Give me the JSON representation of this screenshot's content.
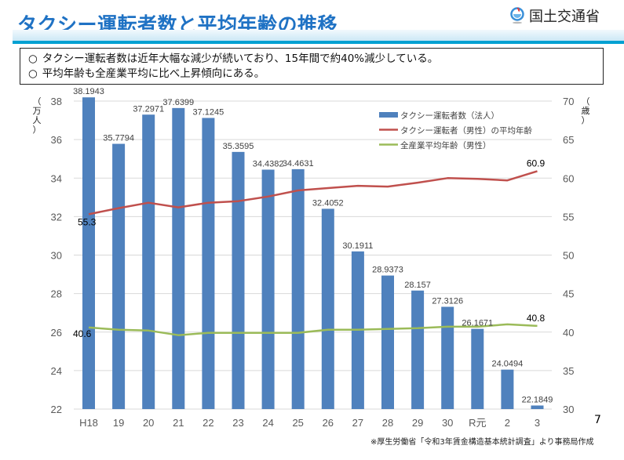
{
  "header": {
    "title": "タクシー運転者数と平均年齢の推移",
    "logo_text": "国土交通省",
    "logo_icon": "mlit-logo-icon"
  },
  "summary": {
    "bullet": "○",
    "lines": [
      "タクシー運転者数は近年大幅な減少が続いており、15年間で約40%減少している。",
      "平均年齢も全産業平均に比べ上昇傾向にある。"
    ]
  },
  "page_number": "7",
  "source_note": "※厚生労働省「令和3年賃金構造基本統計調査」より事務局作成",
  "colors": {
    "bar": "#4f81bd",
    "taxi_age_line": "#c0504d",
    "all_industry_line": "#9bbb59",
    "grid": "#d9d9d9",
    "title": "#1f72c4",
    "header_rule": "#00a0d2"
  },
  "chart_data": {
    "type": "bar",
    "title": "",
    "categories": [
      "H18",
      "19",
      "20",
      "21",
      "22",
      "23",
      "24",
      "25",
      "26",
      "27",
      "28",
      "29",
      "30",
      "R元",
      "2",
      "3"
    ],
    "left_axis": {
      "label": "（万人）",
      "range": [
        22,
        38
      ],
      "ticks": [
        "22",
        "24",
        "26",
        "28",
        "30",
        "32",
        "34",
        "36",
        "38"
      ]
    },
    "right_axis": {
      "label": "（歳）",
      "range": [
        30,
        70
      ],
      "ticks": [
        "30",
        "35",
        "40",
        "45",
        "50",
        "55",
        "60",
        "65",
        "70"
      ]
    },
    "grid": true,
    "legend_position": "top-right",
    "series": [
      {
        "name": "タクシー運転者数（法人）",
        "type": "bar",
        "axis": "left",
        "values": [
          38.1943,
          35.7794,
          37.2971,
          37.6399,
          37.1245,
          35.3595,
          34.4382,
          34.4631,
          32.4052,
          30.1911,
          28.9373,
          28.157,
          27.3126,
          26.1671,
          24.0494,
          22.1849
        ],
        "labels": [
          "38.1943",
          "35.7794",
          "37.2971",
          "37.6399",
          "37.1245",
          "35.3595",
          "34.4382",
          "34.4631",
          "32.4052",
          "30.1911",
          "28.9373",
          "28.157",
          "27.3126",
          "26.1671",
          "24.0494",
          "22.1849"
        ]
      },
      {
        "name": "タクシー運転者（男性）の平均年齢",
        "type": "line",
        "axis": "right",
        "values": [
          55.3,
          56.1,
          56.8,
          56.2,
          56.8,
          57.0,
          57.6,
          58.4,
          58.7,
          59.0,
          58.9,
          59.4,
          60.0,
          59.9,
          59.7,
          60.9
        ],
        "point_labels": {
          "0": "55.3",
          "15": "60.9"
        }
      },
      {
        "name": "全産業平均年齢（男性）",
        "type": "line",
        "axis": "right",
        "values": [
          40.6,
          40.3,
          40.2,
          39.6,
          39.9,
          39.9,
          39.9,
          39.9,
          40.3,
          40.3,
          40.4,
          40.5,
          40.7,
          40.7,
          41.0,
          40.8
        ],
        "point_labels": {
          "0": "40.6",
          "15": "40.8"
        }
      }
    ]
  }
}
